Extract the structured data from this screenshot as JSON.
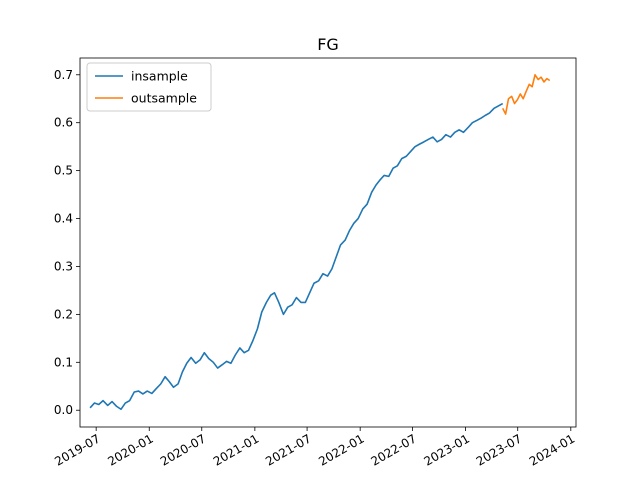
{
  "chart_data": {
    "type": "line",
    "title": "FG",
    "xlabel": "",
    "ylabel": "",
    "x_ticks": [
      "2019-07",
      "2020-01",
      "2020-07",
      "2021-01",
      "2021-07",
      "2022-01",
      "2022-07",
      "2023-01",
      "2023-07",
      "2024-01"
    ],
    "y_ticks": [
      "0.0",
      "0.1",
      "0.2",
      "0.3",
      "0.4",
      "0.5",
      "0.6",
      "0.7"
    ],
    "xlim": [
      "2019-05-06",
      "2024-01-19"
    ],
    "ylim": [
      -0.035,
      0.735
    ],
    "grid": false,
    "legend_position": "upper-left",
    "series": [
      {
        "name": "insample",
        "color": "#1f77b4",
        "x": [
          "2019-06-10",
          "2019-06-25",
          "2019-07-10",
          "2019-07-25",
          "2019-08-10",
          "2019-08-25",
          "2019-09-10",
          "2019-09-25",
          "2019-10-10",
          "2019-10-25",
          "2019-11-10",
          "2019-11-25",
          "2019-12-10",
          "2019-12-25",
          "2020-01-10",
          "2020-01-25",
          "2020-02-10",
          "2020-02-25",
          "2020-03-10",
          "2020-03-25",
          "2020-04-10",
          "2020-04-25",
          "2020-05-10",
          "2020-05-25",
          "2020-06-10",
          "2020-06-25",
          "2020-07-10",
          "2020-07-25",
          "2020-08-10",
          "2020-08-25",
          "2020-09-10",
          "2020-09-25",
          "2020-10-10",
          "2020-10-25",
          "2020-11-10",
          "2020-11-25",
          "2020-12-10",
          "2020-12-25",
          "2021-01-10",
          "2021-01-25",
          "2021-02-10",
          "2021-02-25",
          "2021-03-10",
          "2021-03-25",
          "2021-04-10",
          "2021-04-25",
          "2021-05-10",
          "2021-05-25",
          "2021-06-10",
          "2021-06-25",
          "2021-07-10",
          "2021-07-25",
          "2021-08-10",
          "2021-08-25",
          "2021-09-10",
          "2021-09-25",
          "2021-10-10",
          "2021-10-25",
          "2021-11-10",
          "2021-11-25",
          "2021-12-10",
          "2021-12-25",
          "2022-01-10",
          "2022-01-25",
          "2022-02-10",
          "2022-02-25",
          "2022-03-10",
          "2022-03-25",
          "2022-04-10",
          "2022-04-25",
          "2022-05-10",
          "2022-05-25",
          "2022-06-10",
          "2022-06-25",
          "2022-07-10",
          "2022-07-25",
          "2022-08-10",
          "2022-08-25",
          "2022-09-10",
          "2022-09-25",
          "2022-10-10",
          "2022-10-25",
          "2022-11-10",
          "2022-11-25",
          "2022-12-10",
          "2022-12-25",
          "2023-01-10",
          "2023-01-25",
          "2023-02-10",
          "2023-02-25",
          "2023-03-10",
          "2023-03-25",
          "2023-04-10",
          "2023-04-25",
          "2023-05-10"
        ],
        "values": [
          0.005,
          0.015,
          0.012,
          0.02,
          0.01,
          0.018,
          0.008,
          0.002,
          0.015,
          0.02,
          0.038,
          0.04,
          0.034,
          0.04,
          0.035,
          0.045,
          0.055,
          0.07,
          0.06,
          0.048,
          0.055,
          0.08,
          0.098,
          0.11,
          0.098,
          0.105,
          0.12,
          0.108,
          0.1,
          0.088,
          0.095,
          0.102,
          0.098,
          0.115,
          0.13,
          0.12,
          0.125,
          0.145,
          0.17,
          0.205,
          0.225,
          0.24,
          0.245,
          0.225,
          0.2,
          0.215,
          0.22,
          0.235,
          0.225,
          0.225,
          0.245,
          0.265,
          0.27,
          0.285,
          0.28,
          0.295,
          0.32,
          0.345,
          0.355,
          0.375,
          0.39,
          0.4,
          0.42,
          0.43,
          0.455,
          0.47,
          0.48,
          0.49,
          0.488,
          0.505,
          0.51,
          0.525,
          0.53,
          0.54,
          0.55,
          0.555,
          0.56,
          0.565,
          0.57,
          0.56,
          0.565,
          0.575,
          0.57,
          0.58,
          0.585,
          0.58,
          0.59,
          0.6,
          0.605,
          0.61,
          0.615,
          0.62,
          0.63,
          0.635,
          0.64
        ]
      },
      {
        "name": "outsample",
        "color": "#ff7f0e",
        "x": [
          "2023-05-10",
          "2023-05-20",
          "2023-05-30",
          "2023-06-10",
          "2023-06-20",
          "2023-06-30",
          "2023-07-10",
          "2023-07-20",
          "2023-07-30",
          "2023-08-10",
          "2023-08-20",
          "2023-08-30",
          "2023-09-10",
          "2023-09-20",
          "2023-09-30",
          "2023-10-10",
          "2023-10-20"
        ],
        "values": [
          0.63,
          0.618,
          0.65,
          0.655,
          0.64,
          0.648,
          0.66,
          0.65,
          0.665,
          0.68,
          0.675,
          0.7,
          0.69,
          0.695,
          0.685,
          0.692,
          0.688
        ]
      }
    ]
  }
}
